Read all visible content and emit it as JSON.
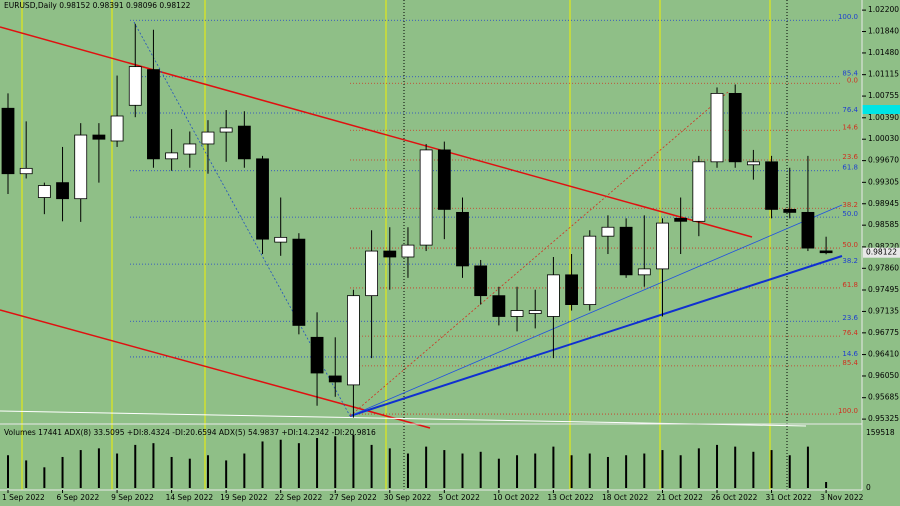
{
  "chart_data": {
    "type": "candlestick",
    "title": "EURUSD,Daily  0.98152 0.98391 0.98096 0.98122",
    "categories": [
      "1 Sep 2022",
      null,
      null,
      "6 Sep 2022",
      null,
      null,
      "9 Sep 2022",
      null,
      null,
      "14 Sep 2022",
      null,
      null,
      "19 Sep 2022",
      null,
      null,
      "22 Sep 2022",
      null,
      null,
      "27 Sep 2022",
      null,
      null,
      "30 Sep 2022",
      null,
      null,
      "5 Oct 2022",
      null,
      null,
      "10 Oct 2022",
      null,
      null,
      "13 Oct 2022",
      null,
      null,
      "18 Oct 2022",
      null,
      null,
      "21 Oct 2022",
      null,
      null,
      "26 Oct 2022",
      null,
      null,
      "31 Oct 2022",
      null,
      null,
      "3 Nov 2022"
    ],
    "open": [
      1.0055,
      0.9945,
      0.9905,
      0.993,
      0.9903,
      1.001,
      1.0,
      1.006,
      1.012,
      0.997,
      0.9978,
      0.9995,
      1.0015,
      1.0025,
      0.997,
      0.983,
      0.9835,
      0.967,
      0.9605,
      0.959,
      0.974,
      0.9815,
      0.9805,
      0.9825,
      0.9985,
      0.988,
      0.979,
      0.974,
      0.9705,
      0.971,
      0.9705,
      0.9775,
      0.9725,
      0.984,
      0.9855,
      0.9775,
      0.9785,
      0.987,
      0.9865,
      0.9965,
      1.008,
      0.996,
      0.9965,
      0.9885,
      0.988,
      0.98152
    ],
    "high": [
      1.008,
      1.0033,
      0.993,
      0.999,
      1.003,
      1.003,
      1.011,
      1.0197,
      1.0187,
      1.002,
      1.0016,
      1.0035,
      1.0052,
      1.005,
      0.9975,
      0.9905,
      0.9845,
      0.9712,
      0.967,
      0.975,
      0.985,
      0.9855,
      0.9855,
      0.9995,
      0.9999,
      0.9905,
      0.98,
      0.9755,
      0.9755,
      0.975,
      0.9805,
      0.981,
      0.985,
      0.9875,
      0.987,
      0.9875,
      0.987,
      0.9905,
      0.9975,
      1.009,
      1.0095,
      0.9985,
      0.9975,
      0.9955,
      0.9975,
      0.98391
    ],
    "low": [
      0.9911,
      0.9937,
      0.9877,
      0.9865,
      0.9864,
      0.993,
      0.999,
      1.004,
      0.9955,
      0.995,
      0.9955,
      0.9945,
      0.9965,
      0.9955,
      0.981,
      0.9807,
      0.9675,
      0.9555,
      0.957,
      0.9535,
      0.9635,
      0.975,
      0.977,
      0.9815,
      0.9835,
      0.977,
      0.9725,
      0.969,
      0.968,
      0.9685,
      0.9635,
      0.9715,
      0.9715,
      0.981,
      0.977,
      0.9755,
      0.9705,
      0.981,
      0.984,
      0.9955,
      0.9955,
      0.9935,
      0.987,
      0.987,
      0.9815,
      0.98096
    ],
    "close": [
      0.9945,
      0.9954,
      0.9925,
      0.9903,
      1.001,
      1.0003,
      1.0042,
      1.0125,
      0.997,
      0.998,
      0.9995,
      1.0015,
      1.0022,
      0.997,
      0.9835,
      0.9838,
      0.969,
      0.961,
      0.9595,
      0.974,
      0.9815,
      0.9805,
      0.9825,
      0.9985,
      0.9885,
      0.979,
      0.974,
      0.9705,
      0.9715,
      0.9715,
      0.9775,
      0.9725,
      0.984,
      0.9855,
      0.9775,
      0.9785,
      0.9862,
      0.9865,
      0.9965,
      1.008,
      0.9965,
      0.9965,
      0.9885,
      0.988,
      0.982,
      0.98122
    ],
    "ylim": [
      0.9531,
      1.0237
    ],
    "yticks": [
      {
        "value": 1.022,
        "label": "1.02200"
      },
      {
        "value": 1.0184,
        "label": "1.01840"
      },
      {
        "value": 1.0148,
        "label": "1.01480"
      },
      1.01115,
      1.00755,
      {
        "value": 1.0039,
        "label": "1.00390"
      },
      {
        "value": 1.0003,
        "label": "1.00030"
      },
      {
        "value": 0.9967,
        "label": "0.99670"
      },
      0.99305,
      0.98945,
      0.98585,
      {
        "value": 0.9822,
        "label": "0.98220"
      },
      {
        "value": 0.9786,
        "label": "0.97860"
      },
      0.97495,
      0.97135,
      0.96775,
      {
        "value": 0.9641,
        "label": "0.96410"
      },
      {
        "value": 0.9605,
        "label": "0.96050"
      },
      0.95685,
      0.95325
    ],
    "levels": [
      {
        "label": "100.0",
        "value": 1.0203,
        "color": "#1f3fd0"
      },
      {
        "label": "85.4",
        "value": 1.0108,
        "color": "#1f3fd0"
      },
      {
        "label": "0.0",
        "value": 1.0097,
        "color": "#d03020"
      },
      {
        "label": "76.4",
        "value": 1.0047,
        "color": "#1f3fd0"
      },
      {
        "label": "14.6",
        "value": 1.0018,
        "color": "#d03020"
      },
      {
        "label": "23.6",
        "value": 0.9968,
        "color": "#d03020"
      },
      {
        "label": "61.8",
        "value": 0.995,
        "color": "#1f3fd0"
      },
      {
        "label": "38.2",
        "value": 0.9887,
        "color": "#d03020"
      },
      {
        "label": "50.0",
        "value": 0.9872,
        "color": "#1f3fd0"
      },
      {
        "label": "50.0",
        "value": 0.982,
        "color": "#d03020"
      },
      {
        "label": "38.2",
        "value": 0.9793,
        "color": "#1f3fd0"
      },
      {
        "label": "61.8",
        "value": 0.9753,
        "color": "#d03020"
      },
      {
        "label": "23.6",
        "value": 0.9697,
        "color": "#1f3fd0"
      },
      {
        "label": "76.4",
        "value": 0.9672,
        "color": "#d03020"
      },
      {
        "label": "14.6",
        "value": 0.9637,
        "color": "#1f3fd0"
      },
      {
        "label": "85.4",
        "value": 0.9622,
        "color": "#d03020"
      },
      {
        "label": "100.0",
        "value": 0.9541,
        "color": "#d03020"
      }
    ],
    "volume_title": "Volumes 17441  ADX(8) 33.5095 +DI:8.4324 -DI:20.6594  ADX(5) 54.9837 +DI:14.2342 -DI:20.9816",
    "volume": [
      95000,
      80000,
      60000,
      90000,
      110000,
      115000,
      100000,
      125000,
      130000,
      90000,
      85000,
      95000,
      80000,
      100000,
      135000,
      140000,
      130000,
      145000,
      150000,
      155000,
      125000,
      115000,
      100000,
      120000,
      110000,
      100000,
      105000,
      85000,
      95000,
      100000,
      120000,
      95000,
      100000,
      90000,
      95000,
      100000,
      110000,
      95000,
      115000,
      125000,
      120000,
      105000,
      110000,
      95000,
      120000,
      17441
    ],
    "volume_ylim": [
      0,
      159518
    ],
    "volume_ticks": [
      159518,
      0
    ],
    "bull_color": "#ffffff",
    "bear_color": "#000000"
  }
}
